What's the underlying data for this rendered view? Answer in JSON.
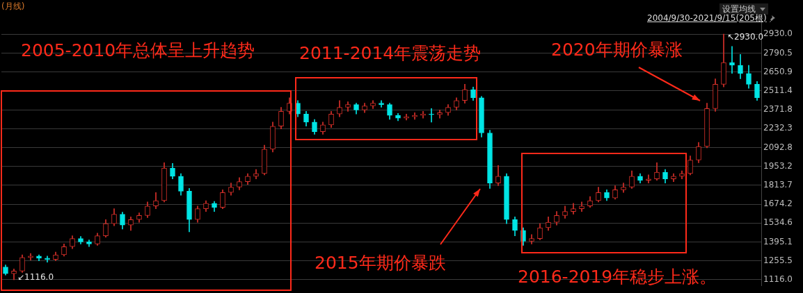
{
  "chart_data": {
    "type": "candlestick",
    "categories": [
      null,
      null,
      null,
      null,
      null,
      null,
      null,
      null,
      null,
      null,
      null,
      null,
      null,
      null,
      null,
      null,
      null,
      null,
      null,
      null,
      null,
      null,
      null,
      null,
      null,
      null,
      null,
      null,
      null,
      null,
      null,
      null,
      null,
      null,
      null,
      null,
      null,
      null,
      null,
      null,
      null,
      null,
      null,
      null,
      null,
      null,
      null,
      null,
      null,
      null,
      null,
      null,
      null,
      null,
      null,
      null,
      null,
      null,
      null,
      null,
      null,
      null,
      null,
      null,
      null,
      null,
      null,
      null,
      null,
      null,
      null,
      null,
      null,
      null,
      null,
      null,
      null,
      null,
      null,
      null,
      null,
      null,
      null,
      null,
      null,
      null,
      null,
      null,
      null,
      null,
      null
    ],
    "ohlc": [
      [
        1210,
        1225,
        1150,
        1160
      ],
      [
        1160,
        1195,
        1116,
        1180
      ],
      [
        1180,
        1300,
        1170,
        1280
      ],
      [
        1280,
        1310,
        1260,
        1290
      ],
      [
        1290,
        1300,
        1255,
        1275
      ],
      [
        1275,
        1290,
        1245,
        1265
      ],
      [
        1265,
        1320,
        1255,
        1300
      ],
      [
        1300,
        1380,
        1290,
        1360
      ],
      [
        1360,
        1440,
        1345,
        1420
      ],
      [
        1420,
        1435,
        1380,
        1395
      ],
      [
        1395,
        1410,
        1360,
        1380
      ],
      [
        1380,
        1460,
        1370,
        1440
      ],
      [
        1440,
        1560,
        1430,
        1530
      ],
      [
        1530,
        1640,
        1515,
        1600
      ],
      [
        1600,
        1615,
        1490,
        1520
      ],
      [
        1520,
        1580,
        1480,
        1560
      ],
      [
        1560,
        1610,
        1540,
        1590
      ],
      [
        1590,
        1690,
        1575,
        1660
      ],
      [
        1660,
        1760,
        1640,
        1700
      ],
      [
        1700,
        1980,
        1690,
        1940
      ],
      [
        1940,
        1975,
        1860,
        1880
      ],
      [
        1880,
        1900,
        1740,
        1770
      ],
      [
        1770,
        1790,
        1470,
        1560
      ],
      [
        1560,
        1660,
        1540,
        1640
      ],
      [
        1640,
        1700,
        1620,
        1680
      ],
      [
        1680,
        1695,
        1620,
        1650
      ],
      [
        1650,
        1780,
        1640,
        1760
      ],
      [
        1760,
        1830,
        1740,
        1800
      ],
      [
        1800,
        1870,
        1780,
        1840
      ],
      [
        1840,
        1900,
        1820,
        1880
      ],
      [
        1880,
        1930,
        1860,
        1900
      ],
      [
        1900,
        2110,
        1890,
        2080
      ],
      [
        2080,
        2280,
        2060,
        2250
      ],
      [
        2250,
        2390,
        2230,
        2360
      ],
      [
        2360,
        2460,
        2340,
        2420
      ],
      [
        2420,
        2440,
        2320,
        2340
      ],
      [
        2340,
        2360,
        2250,
        2280
      ],
      [
        2280,
        2300,
        2190,
        2210
      ],
      [
        2210,
        2280,
        2190,
        2260
      ],
      [
        2260,
        2360,
        2240,
        2340
      ],
      [
        2340,
        2440,
        2320,
        2390
      ],
      [
        2390,
        2430,
        2360,
        2410
      ],
      [
        2410,
        2420,
        2340,
        2370
      ],
      [
        2370,
        2420,
        2350,
        2400
      ],
      [
        2400,
        2440,
        2380,
        2420
      ],
      [
        2420,
        2440,
        2390,
        2410
      ],
      [
        2410,
        2420,
        2300,
        2330
      ],
      [
        2330,
        2345,
        2290,
        2310
      ],
      [
        2310,
        2340,
        2295,
        2320
      ],
      [
        2320,
        2350,
        2300,
        2330
      ],
      [
        2330,
        2360,
        2310,
        2340
      ],
      [
        2340,
        2380,
        2280,
        2335
      ],
      [
        2335,
        2370,
        2310,
        2350
      ],
      [
        2350,
        2410,
        2330,
        2390
      ],
      [
        2390,
        2460,
        2370,
        2440
      ],
      [
        2440,
        2560,
        2420,
        2520
      ],
      [
        2520,
        2540,
        2440,
        2460
      ],
      [
        2460,
        2470,
        2170,
        2200
      ],
      [
        2200,
        2220,
        1790,
        1830
      ],
      [
        1830,
        1960,
        1810,
        1880
      ],
      [
        1880,
        1900,
        1530,
        1560
      ],
      [
        1560,
        1580,
        1440,
        1480
      ],
      [
        1480,
        1500,
        1370,
        1400
      ],
      [
        1400,
        1450,
        1380,
        1420
      ],
      [
        1420,
        1530,
        1410,
        1500
      ],
      [
        1500,
        1580,
        1480,
        1540
      ],
      [
        1540,
        1620,
        1520,
        1590
      ],
      [
        1590,
        1660,
        1570,
        1620
      ],
      [
        1620,
        1680,
        1600,
        1640
      ],
      [
        1640,
        1690,
        1620,
        1660
      ],
      [
        1660,
        1730,
        1650,
        1700
      ],
      [
        1700,
        1800,
        1690,
        1760
      ],
      [
        1760,
        1780,
        1700,
        1720
      ],
      [
        1720,
        1810,
        1710,
        1780
      ],
      [
        1780,
        1830,
        1760,
        1800
      ],
      [
        1800,
        1920,
        1790,
        1880
      ],
      [
        1880,
        1900,
        1830,
        1850
      ],
      [
        1850,
        1890,
        1830,
        1860
      ],
      [
        1860,
        1980,
        1850,
        1910
      ],
      [
        1910,
        1930,
        1830,
        1860
      ],
      [
        1860,
        1900,
        1840,
        1880
      ],
      [
        1880,
        1920,
        1860,
        1900
      ],
      [
        1900,
        2030,
        1890,
        2000
      ],
      [
        2000,
        2130,
        1980,
        2100
      ],
      [
        2100,
        2420,
        2090,
        2380
      ],
      [
        2380,
        2600,
        2360,
        2560
      ],
      [
        2560,
        2930,
        2540,
        2720
      ],
      [
        2720,
        2840,
        2640,
        2700
      ],
      [
        2700,
        2780,
        2600,
        2640
      ],
      [
        2640,
        2700,
        2530,
        2560
      ],
      [
        2560,
        2580,
        2440,
        2460
      ]
    ],
    "colors": [
      "#00e5e5",
      "#d8302a",
      "#d8302a",
      "#d8302a",
      "#00e5e5",
      "#00e5e5",
      "#d8302a",
      "#d8302a",
      "#d8302a",
      "#00e5e5",
      "#00e5e5",
      "#d8302a",
      "#d8302a",
      "#d8302a",
      "#00e5e5",
      "#d8302a",
      "#d8302a",
      "#d8302a",
      "#d8302a",
      "#d8302a",
      "#00e5e5",
      "#00e5e5",
      "#00e5e5",
      "#d8302a",
      "#d8302a",
      "#00e5e5",
      "#d8302a",
      "#d8302a",
      "#d8302a",
      "#d8302a",
      "#d8302a",
      "#d8302a",
      "#d8302a",
      "#d8302a",
      "#d8302a",
      "#00e5e5",
      "#00e5e5",
      "#00e5e5",
      "#d8302a",
      "#d8302a",
      "#d8302a",
      "#d8302a",
      "#00e5e5",
      "#d8302a",
      "#d8302a",
      "#00e5e5",
      "#00e5e5",
      "#00e5e5",
      "#d8302a",
      "#d8302a",
      "#d8302a",
      "#00e5e5",
      "#d8302a",
      "#d8302a",
      "#d8302a",
      "#d8302a",
      "#00e5e5",
      "#00e5e5",
      "#00e5e5",
      "#d8302a",
      "#00e5e5",
      "#00e5e5",
      "#00e5e5",
      "#d8302a",
      "#d8302a",
      "#d8302a",
      "#d8302a",
      "#d8302a",
      "#d8302a",
      "#d8302a",
      "#d8302a",
      "#d8302a",
      "#00e5e5",
      "#d8302a",
      "#d8302a",
      "#d8302a",
      "#00e5e5",
      "#d8302a",
      "#d8302a",
      "#00e5e5",
      "#d8302a",
      "#d8302a",
      "#d8302a",
      "#d8302a",
      "#d8302a",
      "#d8302a",
      "#d8302a",
      "#00e5e5",
      "#00e5e5",
      "#00e5e5",
      "#00e5e5"
    ],
    "ylim": [
      1070,
      3130
    ],
    "yticks": [
      {
        "value": 1116,
        "label": "1116.0"
      },
      1255.5,
      1395.1,
      1534.6,
      1674.2,
      1813.7,
      1953.2,
      2092.8,
      2232.3,
      2371.8,
      2511.4,
      2650.9,
      2790.5,
      {
        "value": 2930,
        "label": "2930.0"
      }
    ],
    "grid": "y",
    "legend": false,
    "tick_labels": "y",
    "annotations": [
      "(月线)",
      "设置均线",
      "2004/9/30-2021/9/15(205根)",
      "2005-2010年总体呈上升趋势",
      "2011-2014年震荡走势",
      "2015年期价暴跌",
      "2016-2019年稳步上涨。",
      "2020年期价暴涨",
      "↖2930.0",
      "↙1116.0"
    ]
  }
}
